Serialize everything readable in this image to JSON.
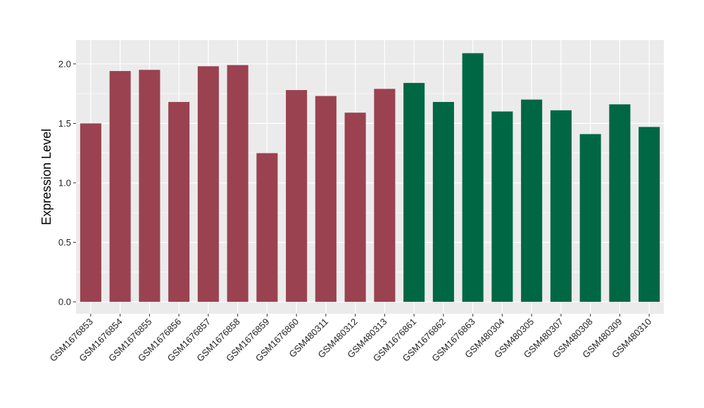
{
  "chart_data": {
    "type": "bar",
    "ylabel": "Expression Level",
    "xlabel": "",
    "ylim": [
      -0.1,
      2.2
    ],
    "yticks": [
      0.0,
      0.5,
      1.0,
      1.5,
      2.0
    ],
    "ytick_labels": [
      "0.0",
      "0.5",
      "1.0",
      "1.5",
      "2.0"
    ],
    "grid": true,
    "categories": [
      "GSM1676853",
      "GSM1676854",
      "GSM1676855",
      "GSM1676856",
      "GSM1676857",
      "GSM1676858",
      "GSM1676859",
      "GSM1676860",
      "GSM480311",
      "GSM480312",
      "GSM480313",
      "GSM1676861",
      "GSM1676862",
      "GSM1676863",
      "GSM480304",
      "GSM480305",
      "GSM480307",
      "GSM480308",
      "GSM480309",
      "GSM480310"
    ],
    "values": [
      1.5,
      1.94,
      1.95,
      1.68,
      1.98,
      1.99,
      1.25,
      1.78,
      1.73,
      1.59,
      1.79,
      1.84,
      1.68,
      2.09,
      1.6,
      1.7,
      1.61,
      1.41,
      1.66,
      1.47
    ],
    "bar_colors": [
      "#9a4250",
      "#9a4250",
      "#9a4250",
      "#9a4250",
      "#9a4250",
      "#9a4250",
      "#9a4250",
      "#9a4250",
      "#9a4250",
      "#9a4250",
      "#9a4250",
      "#006744",
      "#006744",
      "#006744",
      "#006744",
      "#006744",
      "#006744",
      "#006744",
      "#006744",
      "#006744"
    ],
    "panel_background": "#ebebeb",
    "grid_color": "#ffffff"
  }
}
